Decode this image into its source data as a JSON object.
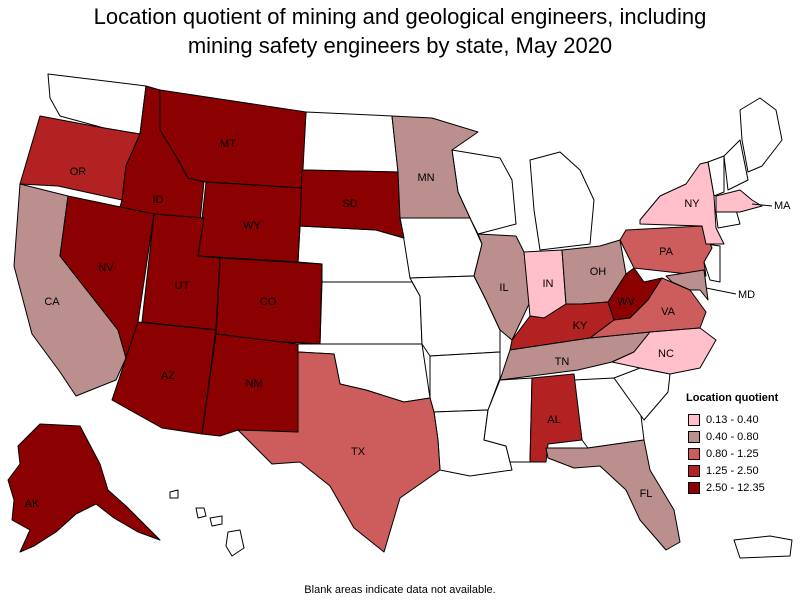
{
  "title_line1": "Location quotient of mining and geological engineers, including",
  "title_line2": "mining safety engineers by state, May 2020",
  "legend": {
    "title": "Location quotient",
    "items": [
      {
        "label": "0.13 - 0.40",
        "color": "#ffc0cb"
      },
      {
        "label": "0.40 - 0.80",
        "color": "#bc8f8f"
      },
      {
        "label": "0.80 - 1.25",
        "color": "#cd5c5c"
      },
      {
        "label": "1.25 - 2.50",
        "color": "#b22222"
      },
      {
        "label": "2.50 - 12.35",
        "color": "#8b0000"
      }
    ]
  },
  "footnote": "Blank areas indicate data not available.",
  "states": {
    "OR": {
      "label": "OR",
      "bin": 3
    },
    "CA": {
      "label": "CA",
      "bin": 1
    },
    "ID": {
      "label": "ID",
      "bin": 4
    },
    "NV": {
      "label": "NV",
      "bin": 4
    },
    "MT": {
      "label": "MT",
      "bin": 4
    },
    "WY": {
      "label": "WY",
      "bin": 4
    },
    "UT": {
      "label": "UT",
      "bin": 4
    },
    "AZ": {
      "label": "AZ",
      "bin": 4
    },
    "CO": {
      "label": "CO",
      "bin": 4
    },
    "NM": {
      "label": "NM",
      "bin": 4
    },
    "SD": {
      "label": "SD",
      "bin": 4
    },
    "MN": {
      "label": "MN",
      "bin": 1
    },
    "TX": {
      "label": "TX",
      "bin": 2
    },
    "IL": {
      "label": "IL",
      "bin": 1
    },
    "IN": {
      "label": "IN",
      "bin": 0
    },
    "OH": {
      "label": "OH",
      "bin": 1
    },
    "KY": {
      "label": "KY",
      "bin": 3
    },
    "WV": {
      "label": "WV",
      "bin": 4
    },
    "TN": {
      "label": "TN",
      "bin": 1
    },
    "AL": {
      "label": "AL",
      "bin": 3
    },
    "FL": {
      "label": "FL",
      "bin": 1
    },
    "PA": {
      "label": "PA",
      "bin": 2
    },
    "VA": {
      "label": "VA",
      "bin": 2
    },
    "NC": {
      "label": "NC",
      "bin": 0
    },
    "NY": {
      "label": "NY",
      "bin": 0
    },
    "MA": {
      "label": "MA",
      "bin": 0
    },
    "MD": {
      "label": "MD",
      "bin": 1
    },
    "AK": {
      "label": "AK",
      "bin": 4
    }
  }
}
